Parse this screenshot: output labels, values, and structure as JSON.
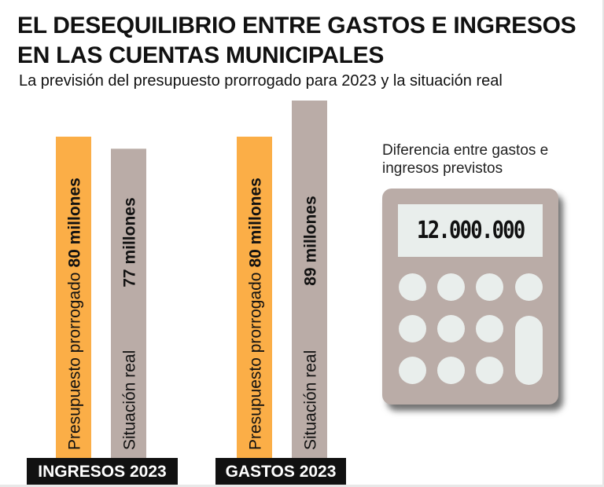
{
  "header": {
    "title": "EL DESEQUILIBRIO ENTRE GASTOS E INGRESOS EN LAS CUENTAS MUNICIPALES",
    "subtitle": "La previsión del presupuesto prorrogado para 2023 y la situación real"
  },
  "chart_data": {
    "type": "bar",
    "categories": [
      "INGRESOS 2023",
      "GASTOS 2023"
    ],
    "unit": "millones",
    "series": [
      {
        "name": "Presupuesto prorrogado",
        "values": [
          80,
          80
        ],
        "labels": [
          "80 millones",
          "80 millones"
        ],
        "color": "#fbae47"
      },
      {
        "name": "Situación real",
        "values": [
          77,
          89
        ],
        "labels": [
          "77 millones",
          "89 millones"
        ],
        "color": "#baaca7"
      }
    ]
  },
  "calculator": {
    "label": "Diferencia entre gastos e ingresos previstos",
    "display": "12.000.000"
  },
  "colors": {
    "orange": "#fbae47",
    "grey": "#baaca7",
    "label_bg": "#111111"
  }
}
